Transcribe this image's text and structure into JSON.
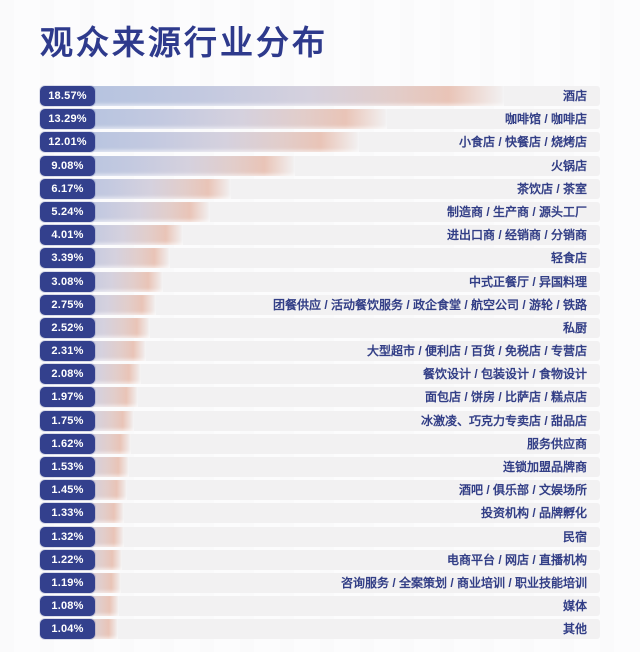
{
  "title": "观众来源行业分布",
  "colors": {
    "title_navy": "#2e3a8c",
    "badge_navy": "#33408d",
    "label_navy": "#323e86",
    "bar_blue": "#b0c1e0",
    "bar_pink": "#e9c4b7",
    "track_gray": "#f2f1f2",
    "background": "#fcfcfd"
  },
  "chart_data": {
    "type": "bar",
    "orientation": "horizontal",
    "title": "观众来源行业分布",
    "unit": "%",
    "xlim": [
      0,
      20
    ],
    "grid": false,
    "legend": false,
    "value_label_position": "left-badge",
    "category_label_position": "right",
    "categories": [
      "酒店",
      "咖啡馆 / 咖啡店",
      "小食店 / 快餐店 / 烧烤店",
      "火锅店",
      "茶饮店 / 茶室",
      "制造商 / 生产商 / 源头工厂",
      "进出口商 / 经销商 / 分销商",
      "轻食店",
      "中式正餐厅 / 异国料理",
      "团餐供应 / 活动餐饮服务 / 政企食堂 / 航空公司 / 游轮 / 铁路",
      "私厨",
      "大型超市 / 便利店 / 百货 / 免税店 / 专营店",
      "餐饮设计 / 包装设计 / 食物设计",
      "面包店 / 饼房 / 比萨店 / 糕点店",
      "冰激凌、巧克力专卖店 / 甜品店",
      "服务供应商",
      "连锁加盟品牌商",
      "酒吧 / 俱乐部 / 文娱场所",
      "投资机构 / 品牌孵化",
      "民宿",
      "电商平台 / 网店 / 直播机构",
      "咨询服务 / 全案策划 / 商业培训 / 职业技能培训",
      "媒体",
      "其他"
    ],
    "values": [
      18.57,
      13.29,
      12.01,
      9.08,
      6.17,
      5.24,
      4.01,
      3.39,
      3.08,
      2.75,
      2.52,
      2.31,
      2.08,
      1.97,
      1.75,
      1.62,
      1.53,
      1.45,
      1.33,
      1.32,
      1.22,
      1.19,
      1.08,
      1.04
    ],
    "value_labels": [
      "18.57%",
      "13.29%",
      "12.01%",
      "9.08%",
      "6.17%",
      "5.24%",
      "4.01%",
      "3.39%",
      "3.08%",
      "2.75%",
      "2.52%",
      "2.31%",
      "2.08%",
      "1.97%",
      "1.75%",
      "1.62%",
      "1.53%",
      "1.45%",
      "1.33%",
      "1.32%",
      "1.22%",
      "1.19%",
      "1.08%",
      "1.04%"
    ]
  }
}
